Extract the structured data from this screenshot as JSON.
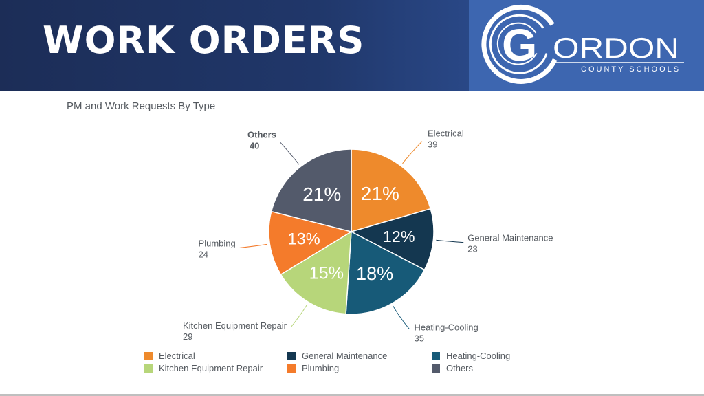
{
  "header": {
    "title": "WORK ORDERS"
  },
  "logo": {
    "letter": "G",
    "name_rest": "ORDON",
    "tagline": "COUNTY SCHOOLS",
    "color": "#ffffff"
  },
  "chart_data": {
    "type": "pie",
    "title": "PM and Work Requests By Type",
    "slices": [
      {
        "name": "Electrical",
        "value": 39,
        "percent": "21%",
        "color": "#ee8a2c",
        "label_color": "#ffffff"
      },
      {
        "name": "General Maintenance",
        "value": 23,
        "percent": "12%",
        "color": "#143750",
        "label_color": "#ffffff"
      },
      {
        "name": "Heating-Cooling",
        "value": 35,
        "percent": "18%",
        "color": "#175a78",
        "label_color": "#ffffff"
      },
      {
        "name": "Kitchen Equipment Repair",
        "value": 29,
        "percent": "15%",
        "color": "#b7d67a",
        "label_color": "#ffffff"
      },
      {
        "name": "Plumbing",
        "value": 24,
        "percent": "13%",
        "color": "#f47b2b",
        "label_color": "#ffffff"
      },
      {
        "name": "Others",
        "value": 40,
        "percent": "21%",
        "color": "#535a6b",
        "label_color": "#ffffff"
      }
    ],
    "legend": [
      {
        "name": "Electrical",
        "color": "#ee8a2c"
      },
      {
        "name": "General Maintenance",
        "color": "#143750"
      },
      {
        "name": "Heating-Cooling",
        "color": "#175a78"
      },
      {
        "name": "Kitchen Equipment Repair",
        "color": "#b7d67a"
      },
      {
        "name": "Plumbing",
        "color": "#f47b2b"
      },
      {
        "name": "Others",
        "color": "#535a6b"
      }
    ],
    "legend_placement": "bottom",
    "highlighted": "Others"
  }
}
